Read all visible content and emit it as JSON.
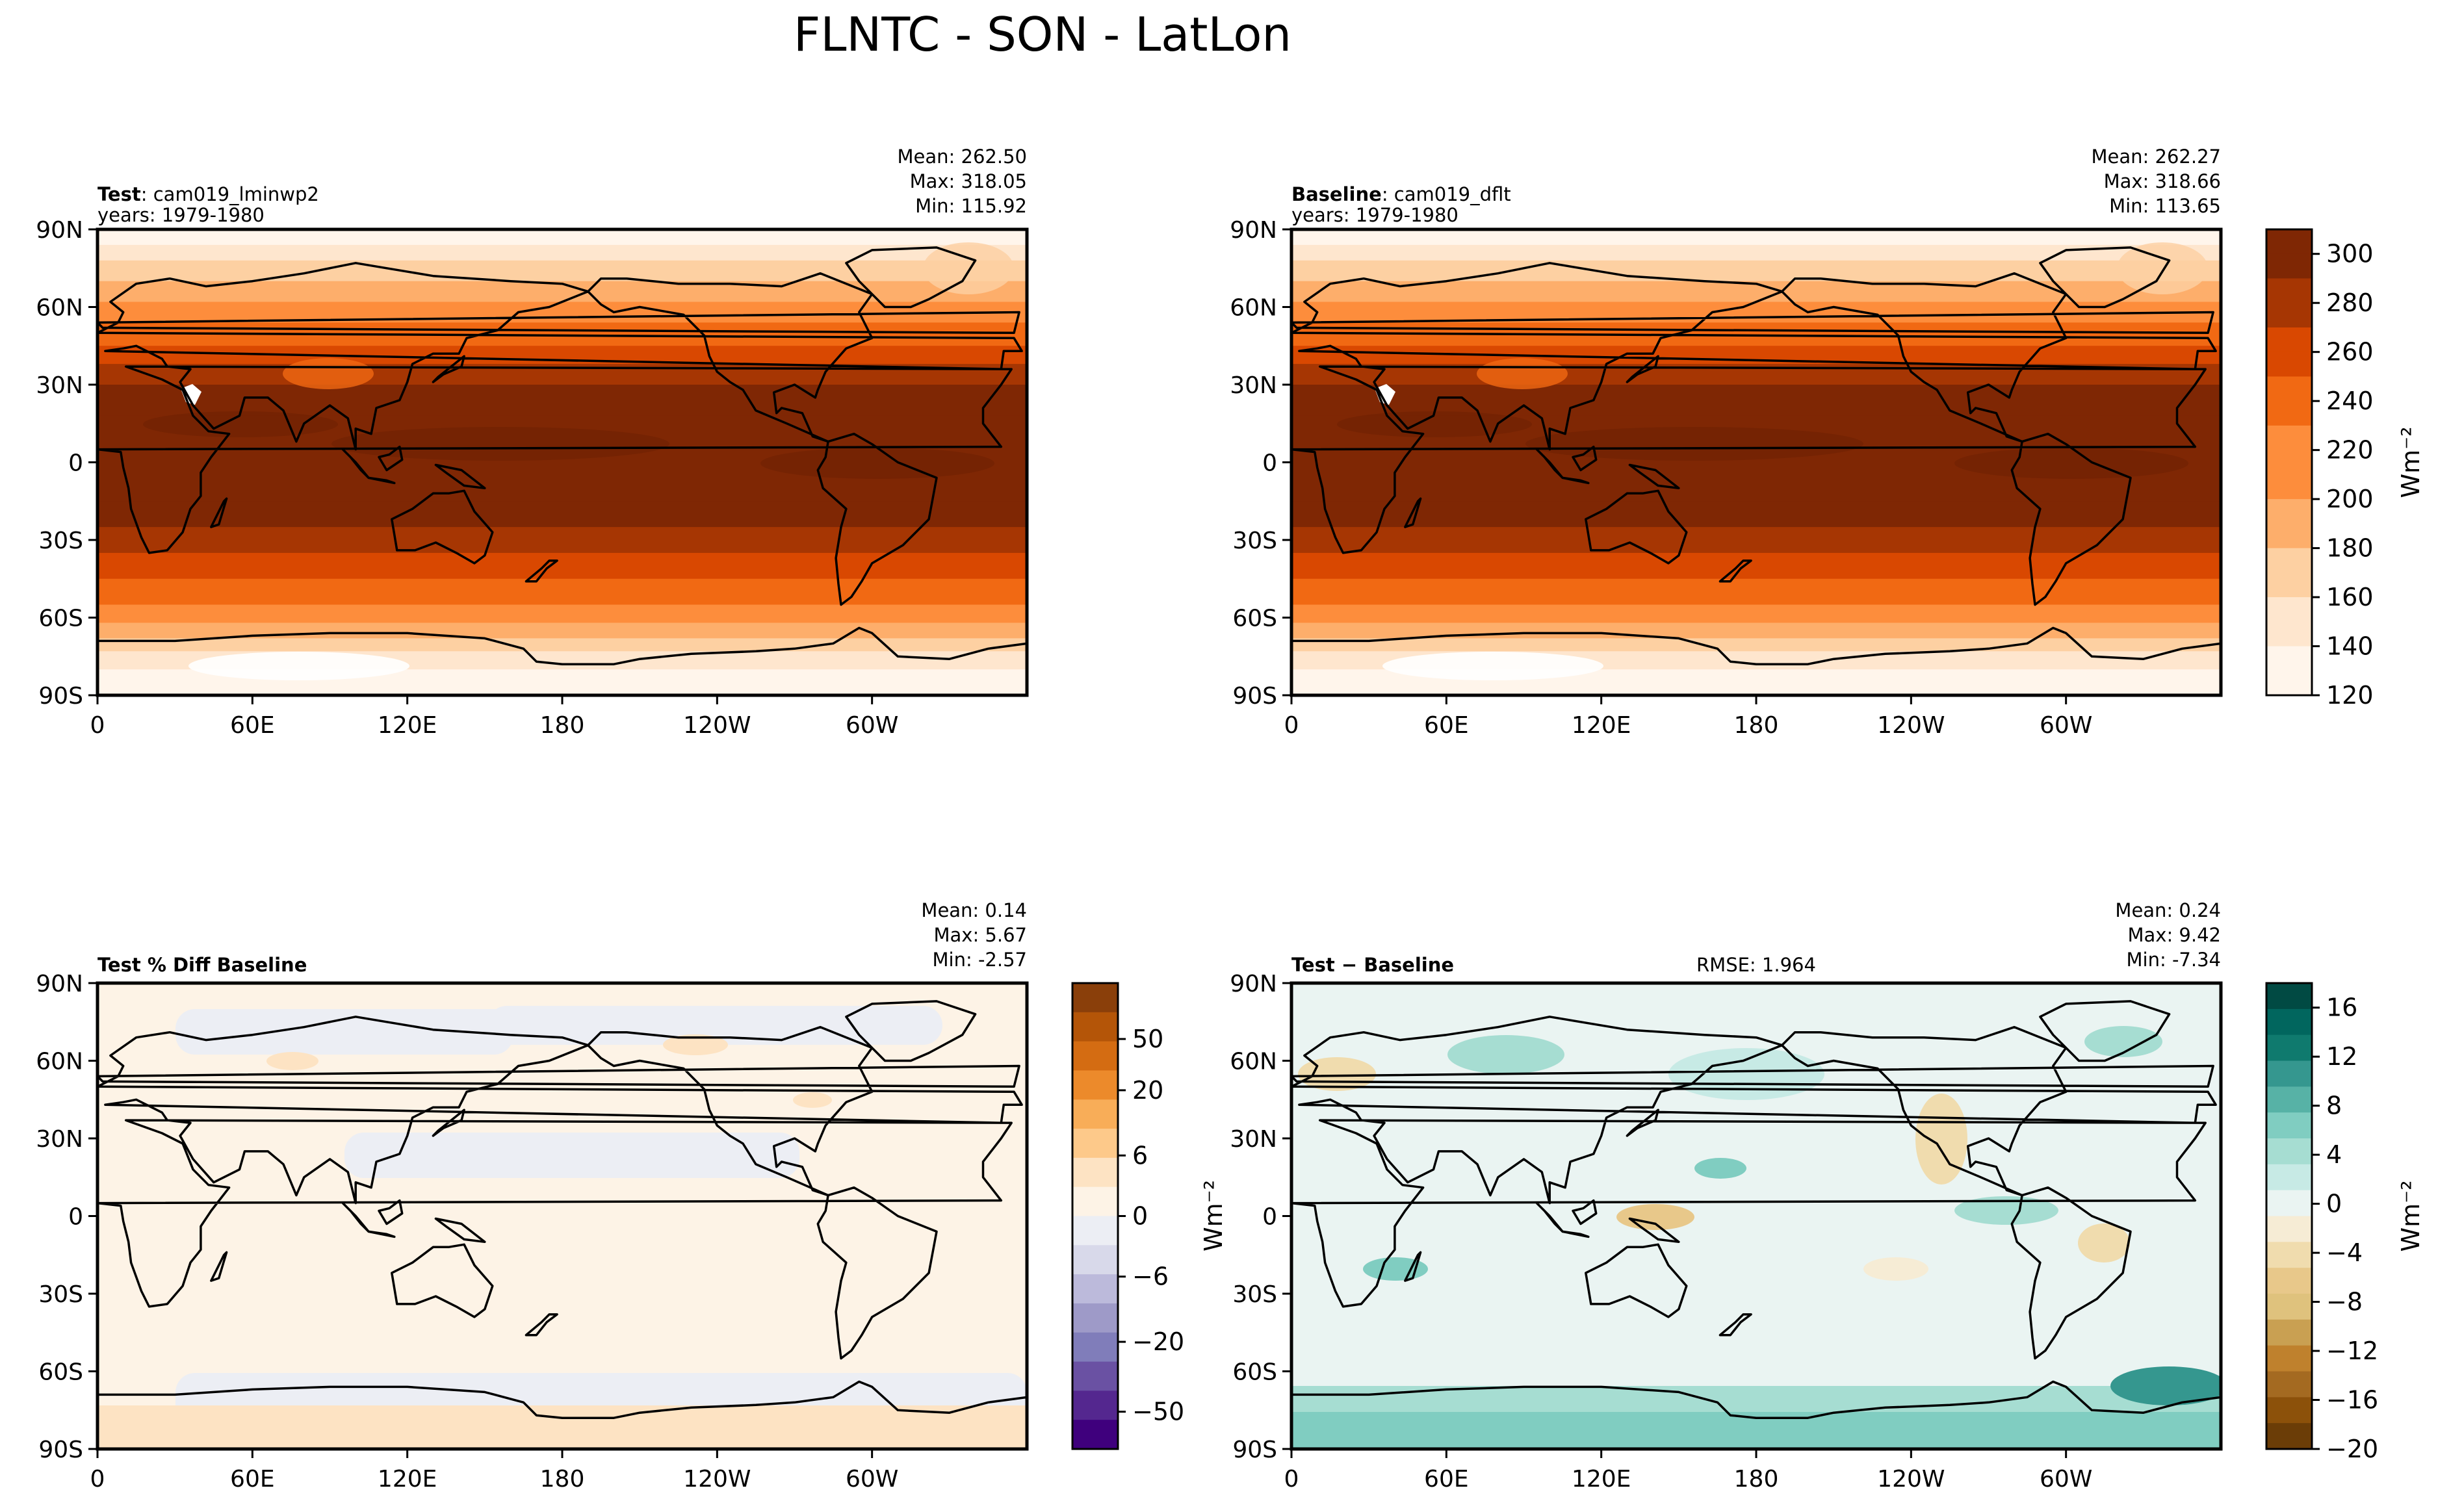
{
  "title": "FLNTC - SON - LatLon",
  "colors": {
    "field_ramp": [
      "#fff5eb",
      "#fee6ce",
      "#fdd0a2",
      "#fdae6b",
      "#fd8d3c",
      "#f16913",
      "#d94801",
      "#a63603",
      "#7f2704"
    ],
    "pct_pos": [
      "#fdf3e6",
      "#fde3c3",
      "#fdc98a",
      "#f8ad58",
      "#ec8a2b",
      "#d46c12",
      "#b45508",
      "#8a3f0a"
    ],
    "pct_neg": [
      "#eceef4",
      "#d8d9ea",
      "#bcbadb",
      "#9e9ac8",
      "#807dba",
      "#6a51a3",
      "#54278f",
      "#3f007d"
    ],
    "diff_pos": [
      "#eaf4f2",
      "#c7eae5",
      "#a6ddd2",
      "#80cdc1",
      "#57b2a6",
      "#35978f",
      "#0f7a6e",
      "#01665e",
      "#014a43"
    ],
    "diff_neg": [
      "#f6ecd5",
      "#f0dcae",
      "#e8c88a",
      "#dfc27d",
      "#c9a052",
      "#bf812d",
      "#a46a21",
      "#8c510a",
      "#6b3d07"
    ],
    "coast": "#000000"
  },
  "panels": [
    {
      "kind": "field",
      "label_bold": "Test",
      "label_rest": ": cam019_lminwp2",
      "years": "years: 1979-1980",
      "stats": [
        "Mean: 262.50",
        "Max: 318.05",
        "Min: 115.92"
      ],
      "rmse": ""
    },
    {
      "kind": "field",
      "label_bold": "Baseline",
      "label_rest": ": cam019_dflt",
      "years": "years: 1979-1980",
      "stats": [
        "Mean: 262.27",
        "Max: 318.66",
        "Min: 113.65"
      ],
      "rmse": ""
    },
    {
      "kind": "pct",
      "label_bold": "Test % Diff Baseline",
      "label_rest": "",
      "years": "",
      "stats": [
        "Mean:  0.14",
        "Max:  5.67",
        "Min: -2.57"
      ],
      "rmse": ""
    },
    {
      "kind": "diff",
      "label_bold": "Test − Baseline",
      "label_rest": "",
      "years": "",
      "stats": [
        "Mean:  0.24",
        "Max:  9.42",
        "Min: -7.34"
      ],
      "rmse": "RMSE: 1.964"
    }
  ],
  "axes": {
    "lat_ticks": [
      "90N",
      "60N",
      "30N",
      "0",
      "30S",
      "60S",
      "90S"
    ],
    "lon_ticks": [
      "0",
      "60E",
      "120E",
      "180",
      "120W",
      "60W"
    ]
  },
  "colorbars": [
    {
      "label": "Wm⁻²",
      "ticks": [
        "300",
        "280",
        "260",
        "240",
        "220",
        "200",
        "180",
        "160",
        "140",
        "120"
      ],
      "range": [
        120,
        310
      ]
    },
    {
      "label": "",
      "ticks": [
        "50",
        "20",
        "6",
        "0",
        "−6",
        "−20",
        "−50"
      ]
    },
    {
      "label": "Wm⁻²",
      "ticks": [
        "16",
        "12",
        "8",
        "4",
        "0",
        "−4",
        "−8",
        "−12",
        "−16",
        "−20"
      ],
      "range": [
        -20,
        18
      ]
    }
  ],
  "pct_side_label": "Wm⁻²",
  "chart_data": {
    "type": "heatmap",
    "title": "FLNTC - SON - LatLon",
    "variable": "FLNTC",
    "season": "SON",
    "units": "Wm⁻²",
    "xlabel": "",
    "ylabel": "",
    "x_ticks": [
      "0",
      "60E",
      "120E",
      "180",
      "120W",
      "60W"
    ],
    "y_ticks": [
      "90N",
      "60N",
      "30N",
      "0",
      "30S",
      "60S",
      "90S"
    ],
    "panels": [
      {
        "name": "Test: cam019_lminwp2",
        "mean": 262.5,
        "max": 318.05,
        "min": 115.92,
        "colorbar_range": [
          120,
          310
        ]
      },
      {
        "name": "Baseline: cam019_dflt",
        "mean": 262.27,
        "max": 318.66,
        "min": 113.65,
        "colorbar_range": [
          120,
          310
        ]
      },
      {
        "name": "Test % Diff Baseline",
        "mean": 0.14,
        "max": 5.67,
        "min": -2.57,
        "colorbar_ticks": [
          50,
          20,
          6,
          0,
          -6,
          -20,
          -50
        ]
      },
      {
        "name": "Test − Baseline",
        "mean": 0.24,
        "max": 9.42,
        "min": -7.34,
        "rmse": 1.964,
        "colorbar_range": [
          -20,
          18
        ]
      }
    ]
  }
}
